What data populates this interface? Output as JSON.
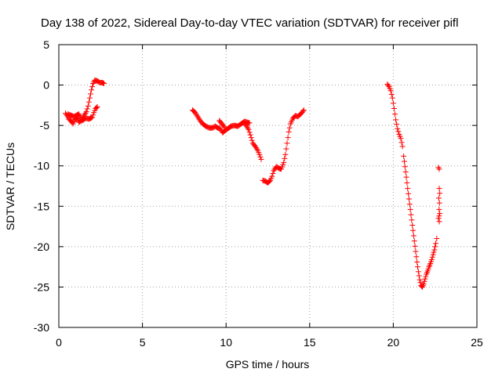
{
  "chart_data": {
    "type": "scatter",
    "title": "Day 138 of 2022, Sidereal Day-to-day VTEC variation (SDTVAR) for receiver pifl",
    "xlabel": "GPS time / hours",
    "ylabel": "SDTVAR / TECUs",
    "xlim": [
      0,
      25
    ],
    "ylim": [
      -30,
      5
    ],
    "xticks": [
      0,
      5,
      10,
      15,
      20,
      25
    ],
    "yticks": [
      -30,
      -25,
      -20,
      -15,
      -10,
      -5,
      0,
      5
    ],
    "grid": true,
    "marker": "plus",
    "color": "#ff0000",
    "segments": [
      [
        [
          0.4,
          -3.5
        ],
        [
          0.5,
          -3.8
        ],
        [
          0.6,
          -4.2
        ],
        [
          0.75,
          -4.5
        ],
        [
          0.85,
          -4.8
        ],
        [
          0.95,
          -4.3
        ],
        [
          1.1,
          -4.1
        ],
        [
          1.2,
          -4.6
        ],
        [
          1.35,
          -4.4
        ],
        [
          1.5,
          -3.8
        ],
        [
          1.65,
          -3.3
        ],
        [
          1.75,
          -2.6
        ],
        [
          1.85,
          -1.6
        ],
        [
          1.95,
          -0.6
        ],
        [
          2.05,
          0.2
        ],
        [
          2.15,
          0.6
        ],
        [
          2.3,
          0.5
        ],
        [
          2.45,
          0.3
        ],
        [
          2.6,
          0.3
        ],
        [
          2.7,
          0.2
        ]
      ],
      [
        [
          0.55,
          -3.6
        ],
        [
          0.9,
          -3.9
        ],
        [
          1.2,
          -3.6
        ],
        [
          1.4,
          -4.4
        ],
        [
          1.6,
          -4.1
        ],
        [
          1.8,
          -4.2
        ],
        [
          2.0,
          -4.0
        ],
        [
          2.1,
          -3.4
        ],
        [
          2.2,
          -2.9
        ],
        [
          2.3,
          -2.7
        ]
      ],
      [
        [
          8.0,
          -3.1
        ],
        [
          8.15,
          -3.4
        ],
        [
          8.3,
          -3.9
        ],
        [
          8.45,
          -4.4
        ],
        [
          8.6,
          -4.8
        ],
        [
          8.8,
          -5.1
        ],
        [
          9.0,
          -5.3
        ],
        [
          9.2,
          -5.3
        ],
        [
          9.35,
          -5.1
        ],
        [
          9.5,
          -5.3
        ],
        [
          9.65,
          -5.4
        ],
        [
          9.8,
          -5.9
        ],
        [
          9.95,
          -5.6
        ],
        [
          10.1,
          -5.4
        ],
        [
          10.3,
          -5.1
        ],
        [
          10.5,
          -5.0
        ],
        [
          10.7,
          -5.1
        ],
        [
          10.9,
          -4.8
        ],
        [
          11.05,
          -4.6
        ],
        [
          11.2,
          -5.0
        ],
        [
          11.35,
          -5.5
        ],
        [
          11.5,
          -6.5
        ],
        [
          11.6,
          -7.2
        ],
        [
          11.75,
          -7.6
        ],
        [
          11.9,
          -8.1
        ],
        [
          12.0,
          -8.6
        ],
        [
          12.1,
          -9.2
        ]
      ],
      [
        [
          9.6,
          -4.4
        ],
        [
          9.75,
          -4.8
        ],
        [
          9.9,
          -5.2
        ]
      ],
      [
        [
          11.1,
          -4.5
        ],
        [
          11.25,
          -4.6
        ],
        [
          11.4,
          -4.7
        ]
      ],
      [
        [
          12.2,
          -11.8
        ],
        [
          12.35,
          -11.9
        ],
        [
          12.5,
          -12.1
        ],
        [
          12.65,
          -11.8
        ],
        [
          12.75,
          -11.3
        ],
        [
          12.85,
          -10.6
        ],
        [
          13.0,
          -10.1
        ],
        [
          13.15,
          -10.3
        ],
        [
          13.3,
          -10.4
        ],
        [
          13.45,
          -9.6
        ],
        [
          13.55,
          -8.6
        ],
        [
          13.65,
          -7.2
        ],
        [
          13.75,
          -5.8
        ],
        [
          13.85,
          -4.8
        ],
        [
          14.0,
          -4.1
        ],
        [
          14.15,
          -3.8
        ],
        [
          14.3,
          -3.9
        ],
        [
          14.5,
          -3.5
        ],
        [
          14.65,
          -3.1
        ]
      ],
      [
        [
          19.65,
          0.1
        ],
        [
          19.75,
          -0.2
        ],
        [
          19.85,
          -0.7
        ],
        [
          19.95,
          -1.6
        ],
        [
          20.05,
          -2.9
        ],
        [
          20.15,
          -4.3
        ],
        [
          20.25,
          -5.4
        ],
        [
          20.35,
          -6.1
        ],
        [
          20.45,
          -6.6
        ],
        [
          20.55,
          -7.6
        ],
        [
          20.62,
          -8.8
        ],
        [
          20.7,
          -10.1
        ],
        [
          20.78,
          -11.4
        ],
        [
          20.86,
          -12.8
        ],
        [
          20.94,
          -14.1
        ],
        [
          21.02,
          -15.4
        ],
        [
          21.1,
          -16.7
        ],
        [
          21.18,
          -18.0
        ],
        [
          21.26,
          -19.3
        ],
        [
          21.34,
          -20.6
        ],
        [
          21.42,
          -21.9
        ],
        [
          21.5,
          -23.1
        ],
        [
          21.58,
          -24.1
        ],
        [
          21.66,
          -24.8
        ],
        [
          21.74,
          -25.0
        ],
        [
          21.82,
          -24.6
        ],
        [
          21.9,
          -24.0
        ],
        [
          21.98,
          -23.4
        ],
        [
          22.06,
          -23.0
        ],
        [
          22.14,
          -22.5
        ],
        [
          22.22,
          -22.1
        ],
        [
          22.3,
          -21.6
        ],
        [
          22.38,
          -21.0
        ],
        [
          22.46,
          -20.4
        ],
        [
          22.54,
          -19.6
        ],
        [
          22.6,
          -19.0
        ]
      ],
      [
        [
          22.7,
          -10.2
        ],
        [
          22.75,
          -10.4
        ]
      ],
      [
        [
          22.75,
          -12.8
        ],
        [
          22.78,
          -13.4
        ],
        [
          22.72,
          -14.0
        ],
        [
          22.76,
          -14.6
        ],
        [
          22.74,
          -15.4
        ],
        [
          22.78,
          -15.9
        ],
        [
          22.7,
          -16.5
        ],
        [
          22.75,
          -16.9
        ]
      ]
    ]
  }
}
